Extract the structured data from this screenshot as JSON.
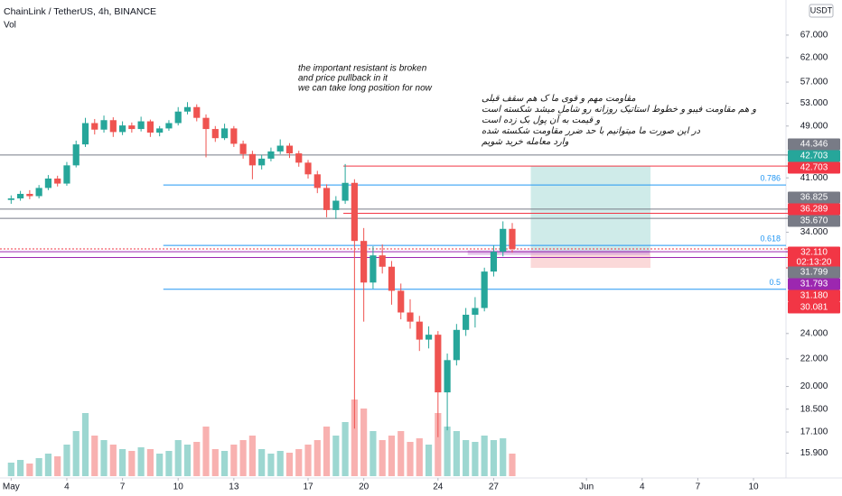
{
  "chart_data": {
    "type": "candlestick",
    "title": "ChainLink / TetherUS, 4h, BINANCE",
    "volume_title": "Vol",
    "currency": "USDT",
    "log_scale": true,
    "ylim": [
      14.6,
      75.6
    ],
    "yticks": [
      {
        "value": 67,
        "label": "67.000"
      },
      {
        "value": 62,
        "label": "62.000"
      },
      {
        "value": 57,
        "label": "57.000"
      },
      {
        "value": 53,
        "label": "53.000"
      },
      {
        "value": 49,
        "label": "49.000"
      },
      {
        "value": 41,
        "label": "41.000"
      },
      {
        "value": 34,
        "label": "34.000"
      },
      {
        "value": 24,
        "label": "24.000"
      },
      {
        "value": 22,
        "label": "22.000"
      },
      {
        "value": 20,
        "label": "20.000"
      },
      {
        "value": 18.5,
        "label": "18.500"
      },
      {
        "value": 17.1,
        "label": "17.100"
      },
      {
        "value": 15.9,
        "label": "15.900"
      }
    ],
    "xlim": [
      -0.6,
      41.75
    ],
    "xticks": [
      {
        "value": 0,
        "label": "May"
      },
      {
        "value": 3,
        "label": "4"
      },
      {
        "value": 6,
        "label": "7"
      },
      {
        "value": 9,
        "label": "10"
      },
      {
        "value": 12,
        "label": "13"
      },
      {
        "value": 16,
        "label": "17"
      },
      {
        "value": 19,
        "label": "20"
      },
      {
        "value": 23,
        "label": "24"
      },
      {
        "value": 26,
        "label": "27"
      },
      {
        "value": 31,
        "label": "Jun"
      },
      {
        "value": 34,
        "label": "4"
      },
      {
        "value": 37,
        "label": "7"
      },
      {
        "value": 40,
        "label": "10"
      }
    ],
    "up_color": "#26a69a",
    "down_color": "#ef5350",
    "x": [
      0,
      0.5,
      1,
      1.5,
      2,
      2.5,
      3,
      3.5,
      4,
      4.5,
      5,
      5.5,
      6,
      6.5,
      7,
      7.5,
      8,
      8.5,
      9,
      9.5,
      10,
      10.5,
      11,
      11.5,
      12,
      12.5,
      13,
      13.5,
      14,
      14.5,
      15,
      15.5,
      16,
      16.5,
      17,
      17.5,
      18,
      18.5,
      19,
      19.5,
      20,
      20.5,
      21,
      21.5,
      22,
      22.5,
      23,
      23.5,
      24,
      24.5,
      25,
      25.5,
      26,
      26.5,
      27
    ],
    "ohlc": [
      [
        38.0,
        38.6,
        37.5,
        38.2
      ],
      [
        38.2,
        39.2,
        37.9,
        38.8
      ],
      [
        38.8,
        39.3,
        38.1,
        38.5
      ],
      [
        38.5,
        40.0,
        38.2,
        39.6
      ],
      [
        39.6,
        41.4,
        39.3,
        40.9
      ],
      [
        40.9,
        41.3,
        39.8,
        40.2
      ],
      [
        40.2,
        43.3,
        39.9,
        42.8
      ],
      [
        42.8,
        46.6,
        42.5,
        46.0
      ],
      [
        46.0,
        50.4,
        45.6,
        49.5
      ],
      [
        49.5,
        50.2,
        47.6,
        48.4
      ],
      [
        48.4,
        50.8,
        47.9,
        50.0
      ],
      [
        50.0,
        50.5,
        47.2,
        48.0
      ],
      [
        48.0,
        49.8,
        47.5,
        49.1
      ],
      [
        49.1,
        49.6,
        47.9,
        48.5
      ],
      [
        48.5,
        50.6,
        48.1,
        49.8
      ],
      [
        49.8,
        50.1,
        47.2,
        47.9
      ],
      [
        47.9,
        49.0,
        47.3,
        48.6
      ],
      [
        48.6,
        50.0,
        48.2,
        49.5
      ],
      [
        49.5,
        52.3,
        49.1,
        51.5
      ],
      [
        51.5,
        53.2,
        51.0,
        52.3
      ],
      [
        52.3,
        52.8,
        49.8,
        50.4
      ],
      [
        50.4,
        51.0,
        44.0,
        48.5
      ],
      [
        48.5,
        49.0,
        46.4,
        47.0
      ],
      [
        47.0,
        49.4,
        46.7,
        48.6
      ],
      [
        48.6,
        49.0,
        45.6,
        46.1
      ],
      [
        46.1,
        46.6,
        43.8,
        44.5
      ],
      [
        44.5,
        45.0,
        40.8,
        42.8
      ],
      [
        42.8,
        44.4,
        42.2,
        43.8
      ],
      [
        43.8,
        45.5,
        43.4,
        44.9
      ],
      [
        44.9,
        46.8,
        44.5,
        45.8
      ],
      [
        45.8,
        46.2,
        43.9,
        44.6
      ],
      [
        44.6,
        45.0,
        42.6,
        43.2
      ],
      [
        43.2,
        43.6,
        40.9,
        41.5
      ],
      [
        41.5,
        42.0,
        38.9,
        39.6
      ],
      [
        39.6,
        40.1,
        35.8,
        36.7
      ],
      [
        36.7,
        38.5,
        35.6,
        37.9
      ],
      [
        37.9,
        43.0,
        37.5,
        40.3
      ],
      [
        40.3,
        40.8,
        17.3,
        33.0
      ],
      [
        33.0,
        34.5,
        25.0,
        28.6
      ],
      [
        28.6,
        32.4,
        28.0,
        31.4
      ],
      [
        31.4,
        32.6,
        29.5,
        30.2
      ],
      [
        30.2,
        30.8,
        26.5,
        27.8
      ],
      [
        27.8,
        28.5,
        25.2,
        25.8
      ],
      [
        25.8,
        27.0,
        24.4,
        25.0
      ],
      [
        25.0,
        25.5,
        22.6,
        23.5
      ],
      [
        23.5,
        24.6,
        22.8,
        23.9
      ],
      [
        23.9,
        24.2,
        16.8,
        19.6
      ],
      [
        19.6,
        22.4,
        17.2,
        21.9
      ],
      [
        21.9,
        24.8,
        21.5,
        24.3
      ],
      [
        24.3,
        26.2,
        23.8,
        25.6
      ],
      [
        25.6,
        27.2,
        24.5,
        26.2
      ],
      [
        26.2,
        30.1,
        25.9,
        29.7
      ],
      [
        29.7,
        32.5,
        29.2,
        31.8
      ],
      [
        31.8,
        35.3,
        31.3,
        34.4
      ],
      [
        34.4,
        35.1,
        31.7,
        32.11
      ]
    ],
    "volume_lim": [
      0,
      100
    ],
    "volume": [
      15,
      18,
      14,
      20,
      25,
      22,
      35,
      50,
      70,
      45,
      40,
      35,
      30,
      28,
      32,
      30,
      25,
      28,
      40,
      35,
      38,
      55,
      30,
      28,
      35,
      40,
      45,
      30,
      25,
      28,
      26,
      30,
      35,
      40,
      55,
      45,
      60,
      85,
      75,
      50,
      40,
      45,
      50,
      38,
      42,
      35,
      70,
      55,
      50,
      40,
      38,
      45,
      40,
      42,
      25
    ],
    "levels": [
      {
        "value": 44.346,
        "color": "#787b86"
      },
      {
        "value": 42.703,
        "color": "#f23645",
        "from": 17.9
      },
      {
        "value": 40.0,
        "color": "#2196f3",
        "from": 8.2,
        "label": 0.786
      },
      {
        "value": 36.825,
        "color": "#787b86"
      },
      {
        "value": 36.289,
        "color": "#f23645",
        "from": 17.9
      },
      {
        "value": 35.67,
        "color": "#787b86"
      },
      {
        "value": 32.5,
        "color": "#2196f3",
        "from": 8.2,
        "label": 0.618
      },
      {
        "value": 32.11,
        "color": "#f23645",
        "dashed": true
      },
      {
        "value": 31.793,
        "color": "#9c27b0"
      },
      {
        "value": 31.18,
        "color": "#9c27b0"
      },
      {
        "value": 27.95,
        "color": "#2196f3",
        "from": 8.2,
        "label": 0.5
      }
    ],
    "zone": {
      "x": [
        24.6,
        34.4
      ],
      "y": [
        31.45,
        31.95
      ],
      "color": "#ce93d8"
    },
    "position": {
      "x": [
        28.0,
        34.45
      ],
      "target": 42.703,
      "entry": 31.7,
      "stop": 30.081,
      "profit_color": "#26a69a",
      "loss_color": "#ef5350"
    },
    "price_tags": [
      {
        "value": 44.346,
        "label": "44.346",
        "color": "#787b86"
      },
      {
        "value": 42.703,
        "label": "42.703",
        "color": "#26a69a"
      },
      {
        "value": 42.703,
        "label": "42.703",
        "color": "#f23645"
      },
      {
        "value": 36.825,
        "label": "36.825",
        "color": "#787b86"
      },
      {
        "value": 36.289,
        "label": "36.289",
        "color": "#f23645"
      },
      {
        "value": 35.67,
        "label": "35.670",
        "color": "#787b86"
      },
      {
        "value": 32.11,
        "label": "32.110",
        "color": "#f23645",
        "countdown": "02:13:20"
      },
      {
        "value": 31.799,
        "label": "31.799",
        "color": "#787b86"
      },
      {
        "value": 31.793,
        "label": "31.793",
        "color": "#9c27b0"
      },
      {
        "value": 31.18,
        "label": "31.180",
        "color": "#f23645"
      },
      {
        "value": 30.081,
        "label": "30.081",
        "color": "#f23645"
      }
    ],
    "note_en": [
      "the important resistant is broken",
      "and price pullback in it",
      "we can take long position for now"
    ],
    "note_fa": [
      "مقاومت مهم و قوی ما ک هم  سقف قبلی",
      "و هم مقاومت فیبو و خطوط استاتیک روزانه رو شامل میشد شکسته است",
      "و قیمت به آن پول بک زده است",
      "در این صورت ما میتوانیم با حد ضرر مقاومت شکسته شده",
      "وارد معامله خرید شویم"
    ]
  }
}
